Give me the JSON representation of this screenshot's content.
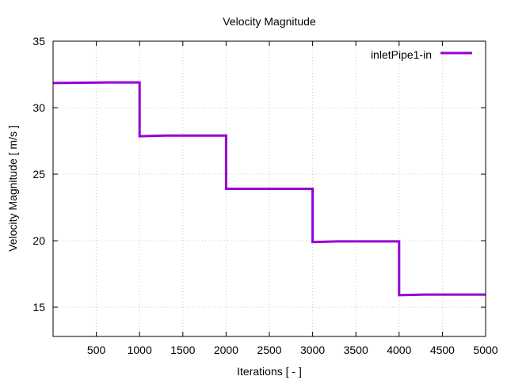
{
  "chart_data": {
    "type": "line",
    "title": "Velocity Magnitude",
    "xlabel": "Iterations [ - ]",
    "ylabel": "Velocity Magnitude [ m/s ]",
    "xlim": [
      0,
      5000
    ],
    "ylim": [
      12.8,
      35
    ],
    "xticks": [
      500,
      1000,
      1500,
      2000,
      2500,
      3000,
      3500,
      4000,
      4500,
      5000
    ],
    "yticks": [
      15,
      20,
      25,
      30,
      35
    ],
    "grid": true,
    "legend_position": "top-right",
    "series": [
      {
        "name": "inletPipe1-in",
        "color": "#9400d3",
        "step": true,
        "x": [
          0,
          650,
          1000,
          1000,
          1300,
          2000,
          2000,
          2300,
          3000,
          3000,
          3300,
          4000,
          4000,
          4300,
          5000
        ],
        "y": [
          31.85,
          31.9,
          31.9,
          27.85,
          27.9,
          27.9,
          23.9,
          23.9,
          23.9,
          19.9,
          19.95,
          19.95,
          15.9,
          15.95,
          15.95
        ]
      }
    ]
  }
}
